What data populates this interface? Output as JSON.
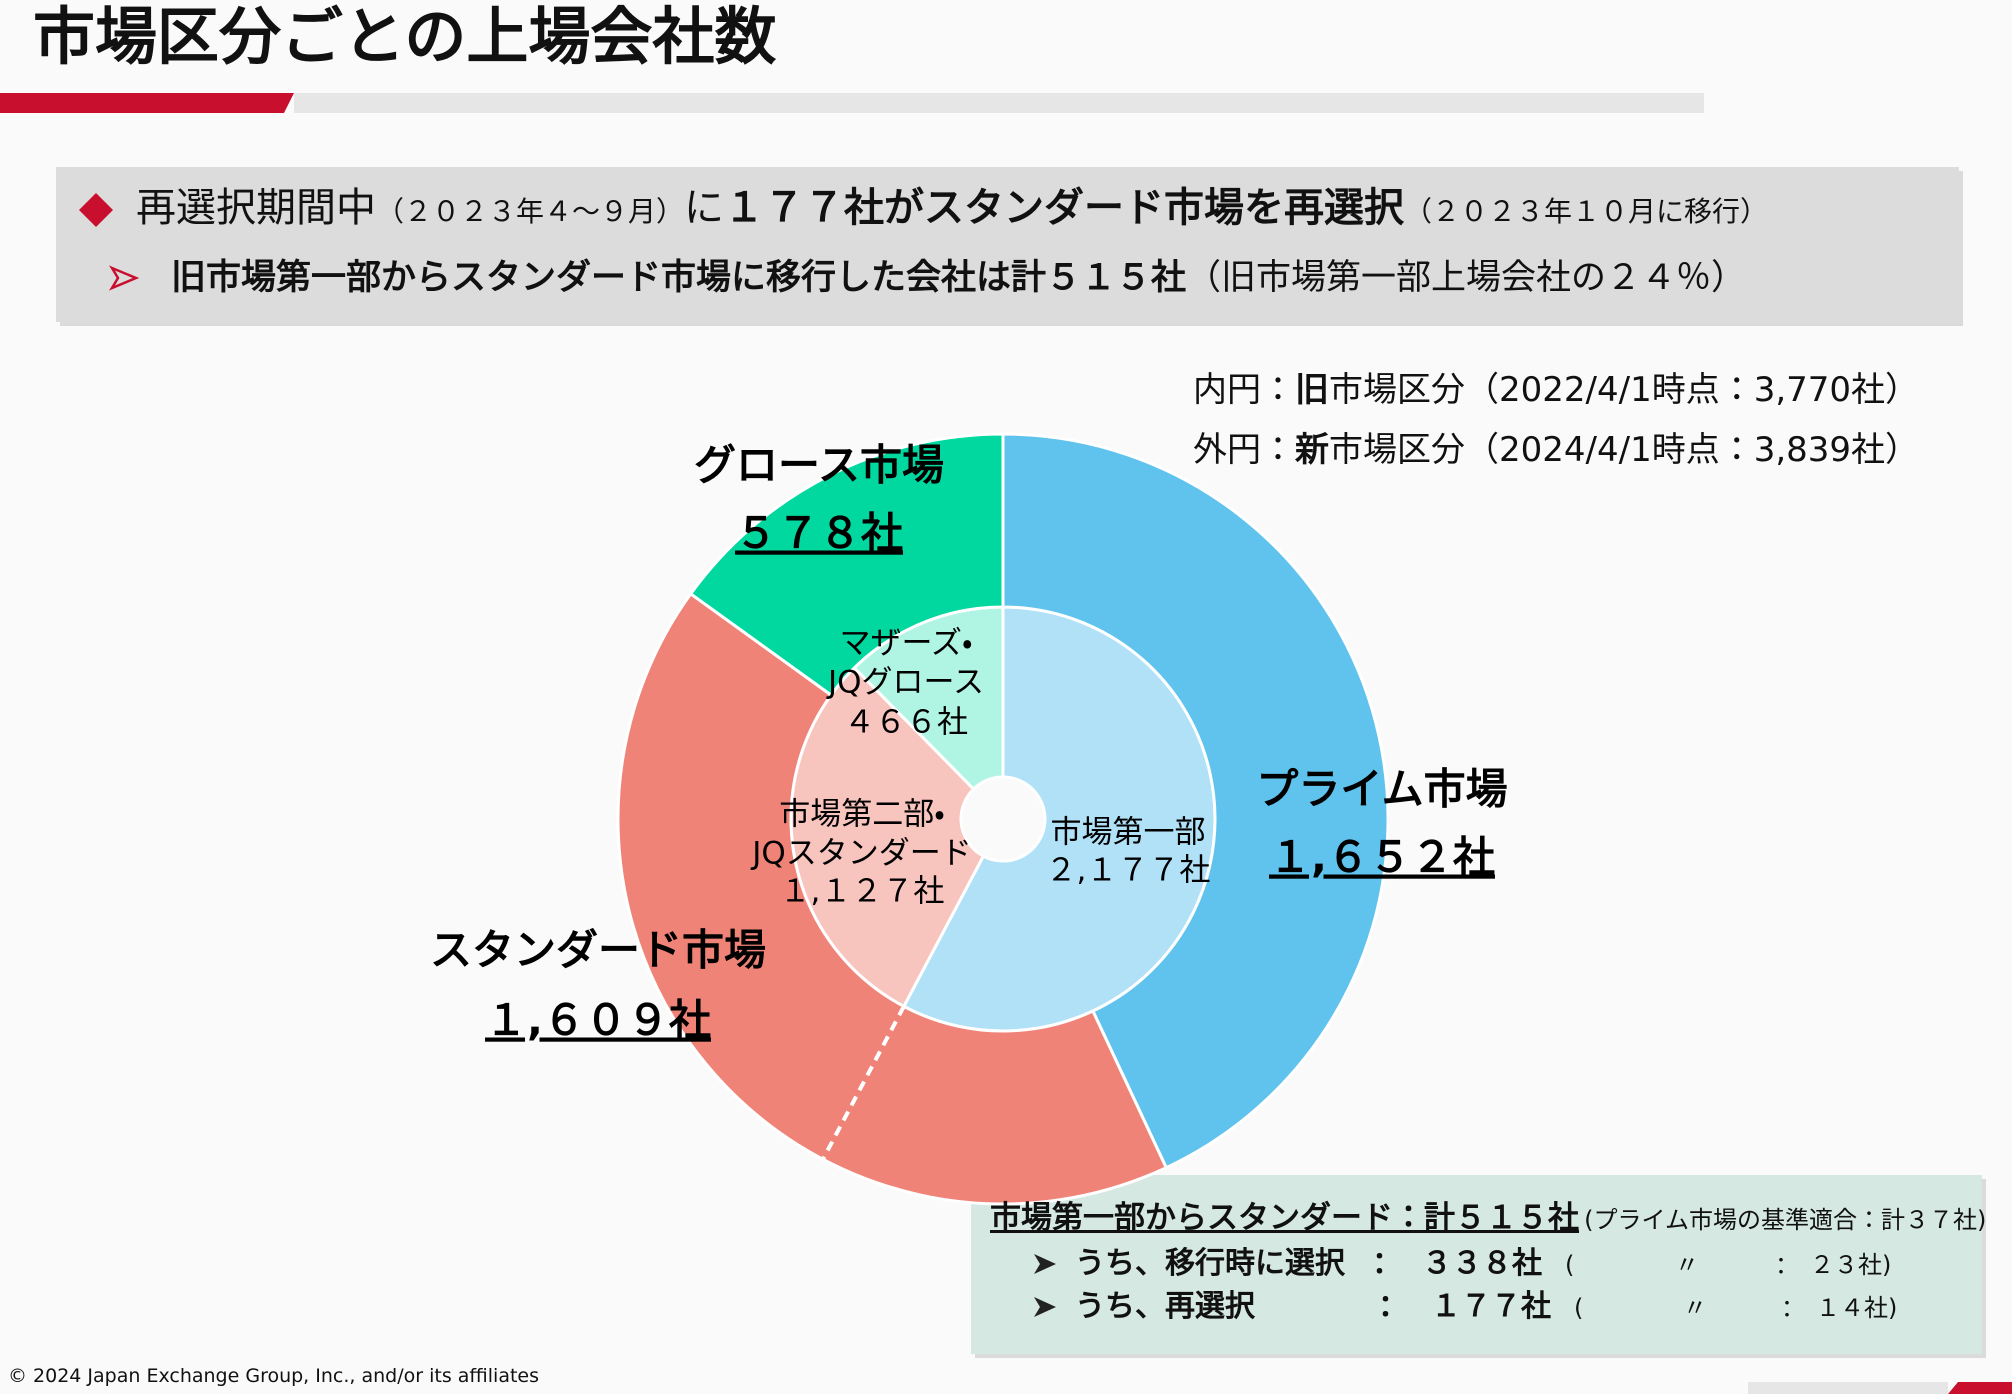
{
  "header": {
    "title": "市場区分ごとの上場会社数"
  },
  "summary": {
    "line1": [
      "再選択期間中",
      "（２０２３年４～９月）",
      "に",
      "１７７社がスタンダード市場を再選択",
      "（２０２３年１０月に移行）"
    ],
    "line2": [
      "旧市場第一部からスタンダード市場に移行した会社は計５１５社",
      "（旧市場第一部上場会社の２４％）"
    ]
  },
  "legend": [
    [
      "内円：",
      "旧",
      "市場区分（2022/4/1時点：3,770社）"
    ],
    [
      "外円：",
      "新",
      "市場区分（2024/4/1時点：3,839社）"
    ]
  ],
  "chart_data": {
    "type": "donut",
    "series": [
      {
        "labels": [
          [
            "市場第一部"
          ],
          [
            "市場第二部・",
            "JQスタンダード"
          ],
          [
            "マザーズ・",
            "JQグロース"
          ]
        ],
        "values": [
          2177,
          1127,
          466
        ],
        "value_labels": [
          "２,１７７社",
          "１,１２７社",
          "４６６社"
        ],
        "colors": [
          "#b0e1f7",
          "#f8c4be",
          "#b0f5e4"
        ]
      },
      {
        "labels": [
          "プライム市場",
          "スタンダード市場",
          "グロース市場"
        ],
        "values": [
          1652,
          1609,
          578
        ],
        "value_labels": [
          "１,６５２社",
          "１,６０９社",
          "５７８社"
        ],
        "colors": [
          "#5fc3ee",
          "#f08377",
          "#00d8a0"
        ]
      }
    ]
  },
  "callout": {
    "title": "市場第一部からスタンダード：計５１５社",
    "note": "(プライム市場の基準適合：計３７社)",
    "rows": [
      [
        "うち、移行時に選択",
        "：",
        "３３８社",
        "(",
        "〃",
        "：",
        "２３社)"
      ],
      [
        "うち、再選択",
        "：",
        "１７７社",
        "(",
        "〃",
        "：",
        "１４社)"
      ]
    ]
  },
  "footer": "© 2024 Japan Exchange Group, Inc., and/or its affiliates"
}
